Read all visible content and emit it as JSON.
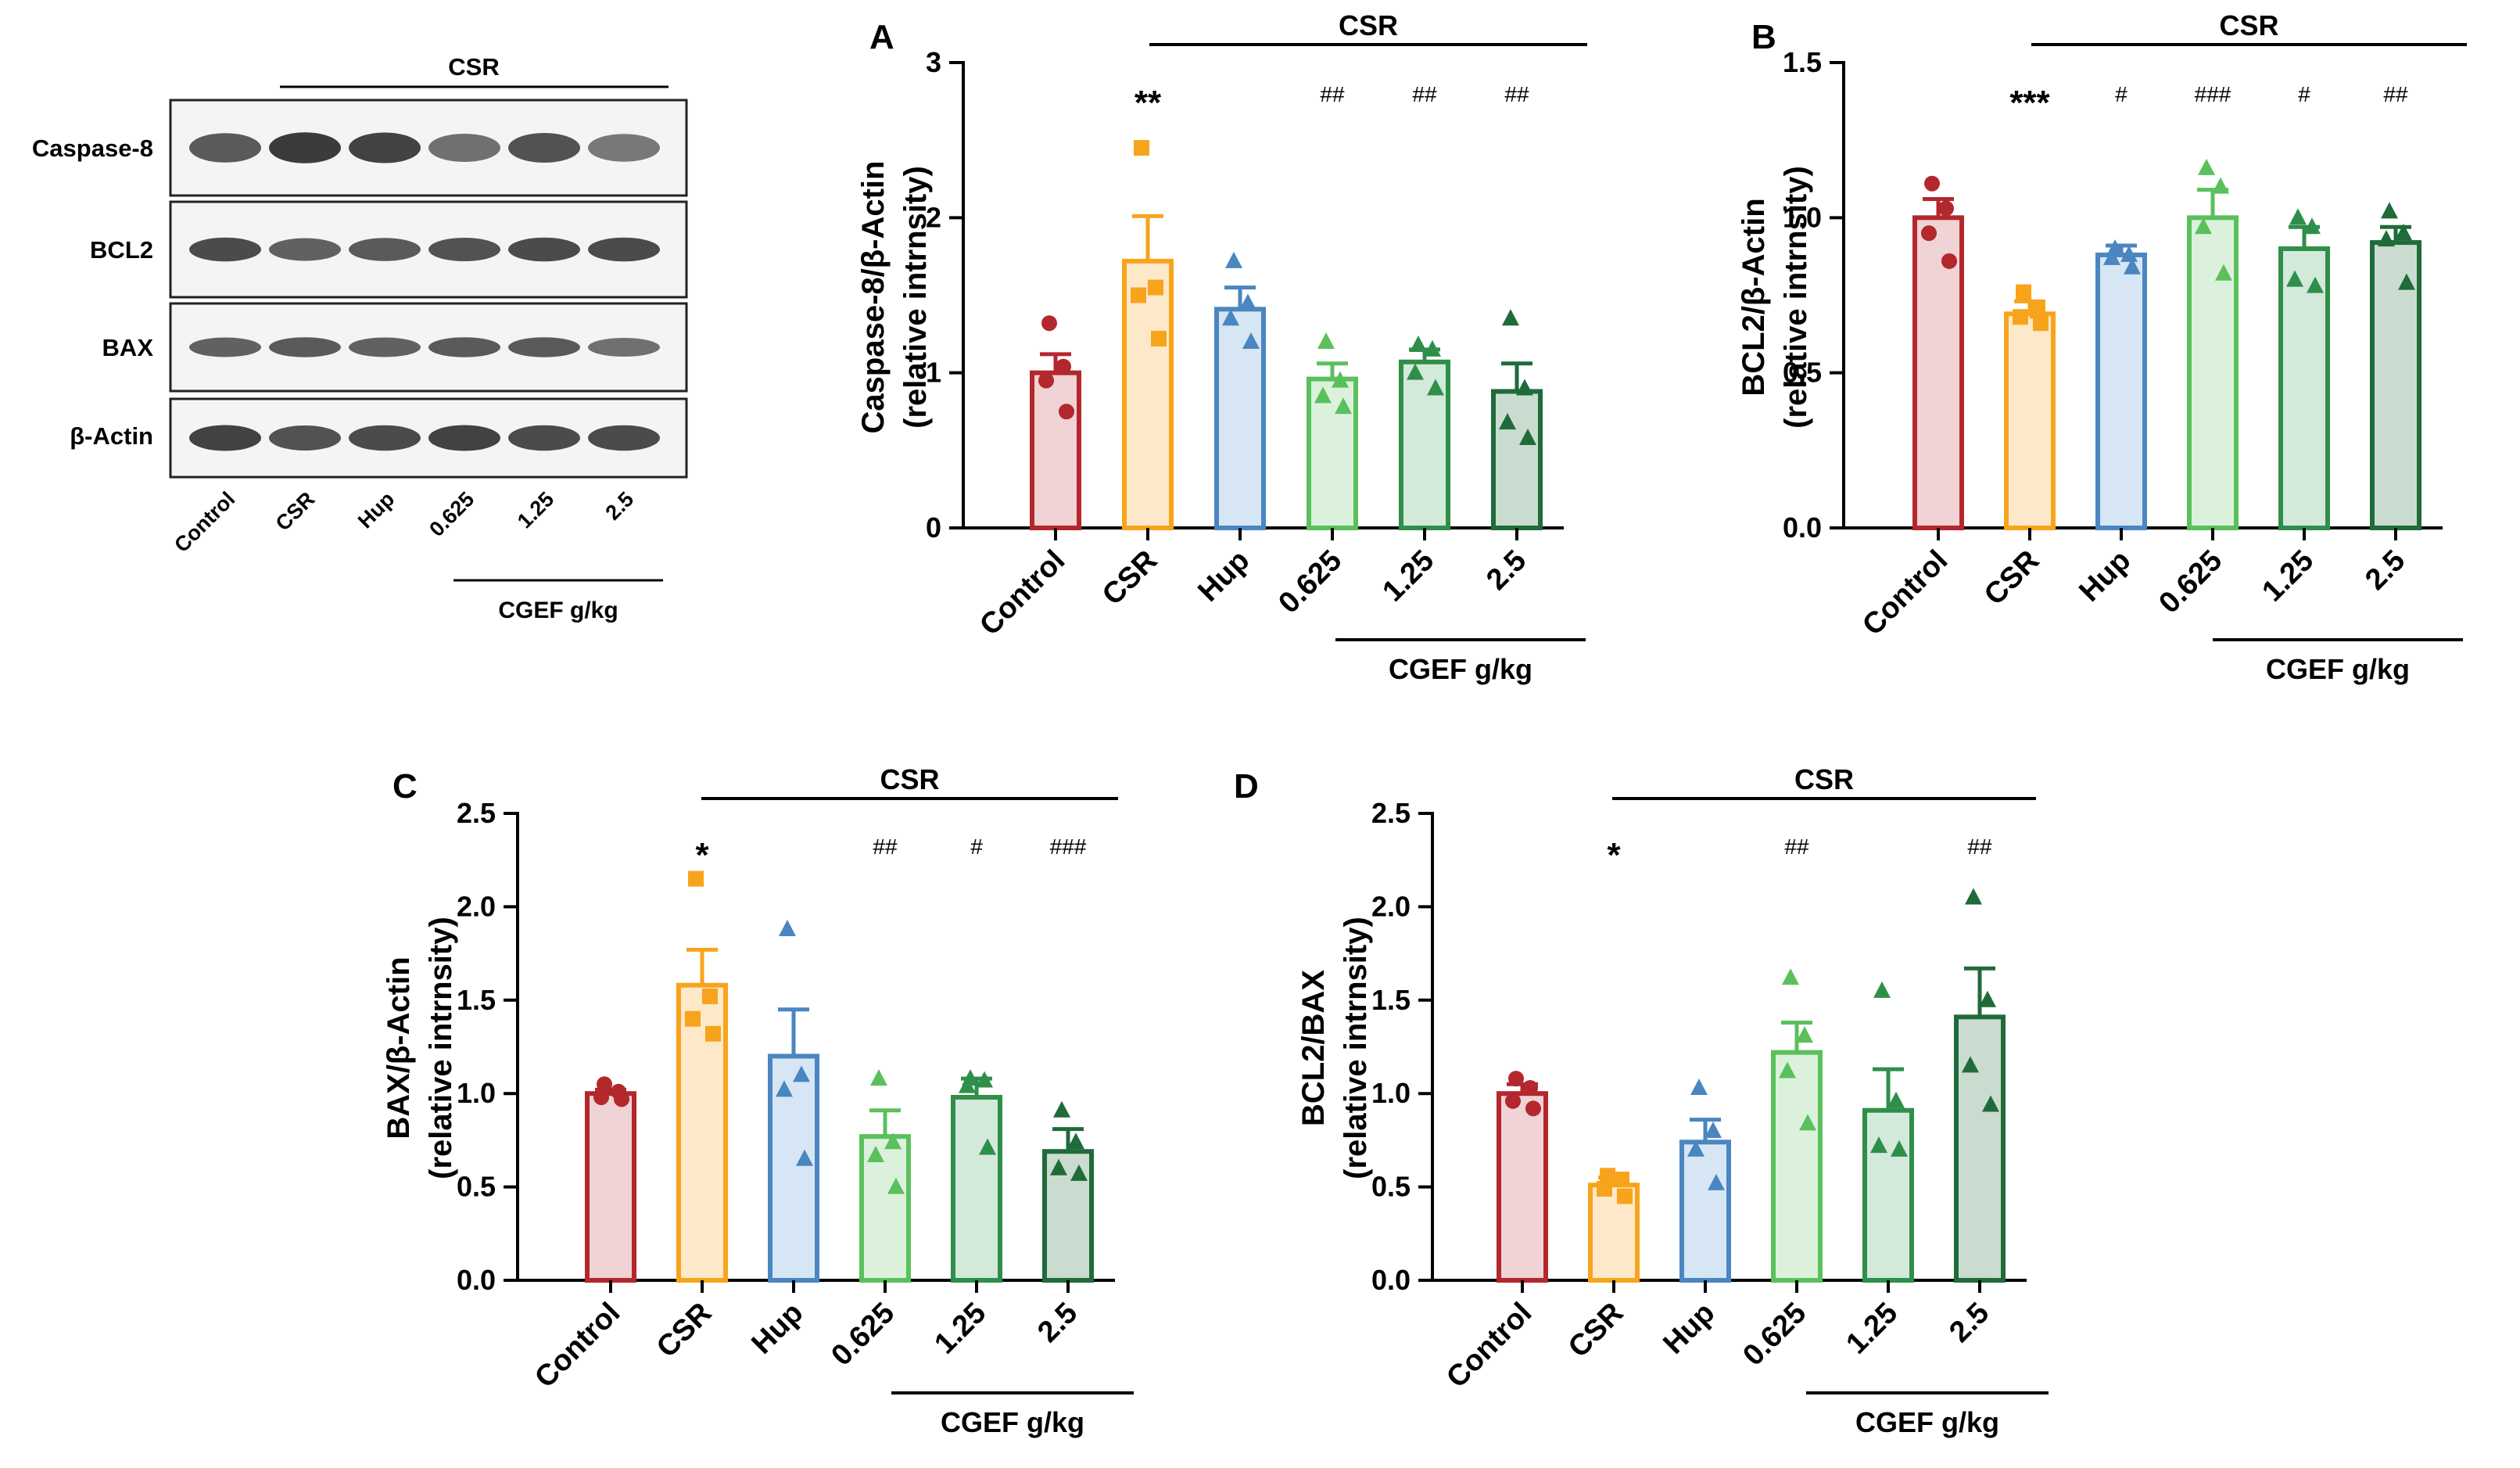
{
  "colors": {
    "control": {
      "stroke": "#b3272d",
      "fill": "#efd3d5"
    },
    "csr": {
      "stroke": "#f7a41c",
      "fill": "#fde9c9"
    },
    "hup": {
      "stroke": "#4a86bf",
      "fill": "#d7e6f4"
    },
    "c0625": {
      "stroke": "#5ac05c",
      "fill": "#dcf1dc"
    },
    "c125": {
      "stroke": "#2f8f4a",
      "fill": "#d3e9da"
    },
    "c25": {
      "stroke": "#1f6b3a",
      "fill": "#cadccf"
    }
  },
  "western_blot": {
    "csr_label": "CSR",
    "rows": [
      {
        "label": "Caspase-8",
        "intensity": [
          0.75,
          0.95,
          0.9,
          0.6,
          0.8,
          0.55
        ]
      },
      {
        "label": "BCL2",
        "intensity": [
          0.85,
          0.7,
          0.75,
          0.8,
          0.85,
          0.85
        ]
      },
      {
        "label": "BAX",
        "intensity": [
          0.7,
          0.75,
          0.7,
          0.75,
          0.75,
          0.6
        ]
      },
      {
        "label": "β-Actin",
        "intensity": [
          0.9,
          0.8,
          0.85,
          0.9,
          0.85,
          0.85
        ]
      }
    ],
    "lane_labels": [
      "Control",
      "CSR",
      "Hup",
      "0.625",
      "1.25",
      "2.5"
    ],
    "group_label": "CGEF g/kg"
  },
  "chart_data": [
    {
      "type": "bar",
      "panel": "A",
      "title": "",
      "ylabel_line1": "Caspase-8/β-Actin",
      "ylabel_line2": "(relative intrnsity)",
      "categories": [
        "Control",
        "CSR",
        "Hup",
        "0.625",
        "1.25",
        "2.5"
      ],
      "values": [
        1.0,
        1.72,
        1.41,
        0.96,
        1.07,
        0.88
      ],
      "sem": [
        0.12,
        0.29,
        0.14,
        0.1,
        0.08,
        0.18
      ],
      "points": [
        [
          1.32,
          1.04,
          0.95,
          0.75
        ],
        [
          2.45,
          1.55,
          1.5,
          1.22
        ],
        [
          1.72,
          1.45,
          1.35,
          1.2
        ],
        [
          1.2,
          0.95,
          0.85,
          0.78
        ],
        [
          1.18,
          1.15,
          1.0,
          0.9
        ],
        [
          1.35,
          0.9,
          0.68,
          0.58
        ]
      ],
      "markers": [
        "circle",
        "square",
        "triangle",
        "triangle",
        "triangle",
        "triangle"
      ],
      "significance": [
        "",
        "**",
        "",
        "##",
        "##",
        "##"
      ],
      "ylim": [
        0,
        3
      ],
      "yticks": [
        "0",
        "1",
        "2",
        "3"
      ],
      "csr_label": "CSR",
      "group_label": "CGEF g/kg"
    },
    {
      "type": "bar",
      "panel": "B",
      "title": "",
      "ylabel_line1": "BCL2/β-Actin",
      "ylabel_line2": "(relative intrnsity)",
      "categories": [
        "Control",
        "CSR",
        "Hup",
        "0.625",
        "1.25",
        "2.5"
      ],
      "values": [
        1.0,
        0.69,
        0.88,
        1.0,
        0.9,
        0.92
      ],
      "sem": [
        0.06,
        0.04,
        0.03,
        0.09,
        0.07,
        0.05
      ],
      "points": [
        [
          1.11,
          1.03,
          0.95,
          0.86
        ],
        [
          0.76,
          0.7,
          0.68,
          0.66
        ],
        [
          0.9,
          0.88,
          0.87,
          0.84
        ],
        [
          1.16,
          1.1,
          0.97,
          0.82
        ],
        [
          1.0,
          0.97,
          0.8,
          0.78
        ],
        [
          1.02,
          0.95,
          0.93,
          0.79
        ]
      ],
      "markers": [
        "circle",
        "square",
        "triangle",
        "triangle",
        "triangle",
        "triangle"
      ],
      "significance": [
        "",
        "***",
        "#",
        "###",
        "#",
        "##"
      ],
      "ylim": [
        0,
        1.5
      ],
      "yticks": [
        "0.0",
        "0.5",
        "1.0",
        "1.5"
      ],
      "csr_label": "CSR",
      "group_label": "CGEF g/kg"
    },
    {
      "type": "bar",
      "panel": "C",
      "title": "",
      "ylabel_line1": "BAX/β-Actin",
      "ylabel_line2": "(relative intrnsity)",
      "categories": [
        "Control",
        "CSR",
        "Hup",
        "0.625",
        "1.25",
        "2.5"
      ],
      "values": [
        1.0,
        1.58,
        1.2,
        0.77,
        0.98,
        0.69
      ],
      "sem": [
        0.02,
        0.19,
        0.25,
        0.14,
        0.1,
        0.12
      ],
      "points": [
        [
          1.05,
          1.01,
          0.98,
          0.97
        ],
        [
          2.15,
          1.52,
          1.4,
          1.32
        ],
        [
          1.88,
          1.1,
          1.02,
          0.65
        ],
        [
          1.08,
          0.74,
          0.67,
          0.5
        ],
        [
          1.08,
          1.07,
          1.04,
          0.71
        ],
        [
          0.91,
          0.74,
          0.6,
          0.57
        ]
      ],
      "markers": [
        "circle",
        "square",
        "triangle",
        "triangle",
        "triangle",
        "triangle"
      ],
      "significance": [
        "",
        "*",
        "",
        "##",
        "#",
        "###"
      ],
      "ylim": [
        0,
        2.5
      ],
      "yticks": [
        "0.0",
        "0.5",
        "1.0",
        "1.5",
        "2.0",
        "2.5"
      ],
      "csr_label": "CSR",
      "group_label": "CGEF g/kg"
    },
    {
      "type": "bar",
      "panel": "D",
      "title": "",
      "ylabel_line1": "BCL2/BAX",
      "ylabel_line2": "(relative intrnsity)",
      "categories": [
        "Control",
        "CSR",
        "Hup",
        "0.625",
        "1.25",
        "2.5"
      ],
      "values": [
        1.0,
        0.51,
        0.74,
        1.22,
        0.91,
        1.41
      ],
      "sem": [
        0.05,
        0.04,
        0.12,
        0.16,
        0.22,
        0.26
      ],
      "points": [
        [
          1.08,
          1.03,
          0.96,
          0.92
        ],
        [
          0.56,
          0.54,
          0.49,
          0.45
        ],
        [
          1.03,
          0.8,
          0.7,
          0.52
        ],
        [
          1.62,
          1.31,
          1.12,
          0.84
        ],
        [
          1.55,
          0.96,
          0.72,
          0.7
        ],
        [
          2.05,
          1.5,
          1.15,
          0.94
        ]
      ],
      "markers": [
        "circle",
        "square",
        "triangle",
        "triangle",
        "triangle",
        "triangle"
      ],
      "significance": [
        "",
        "*",
        "",
        "##",
        "",
        "##"
      ],
      "ylim": [
        0,
        2.5
      ],
      "yticks": [
        "0.0",
        "0.5",
        "1.0",
        "1.5",
        "2.0",
        "2.5"
      ],
      "csr_label": "CSR",
      "group_label": "CGEF g/kg"
    }
  ]
}
